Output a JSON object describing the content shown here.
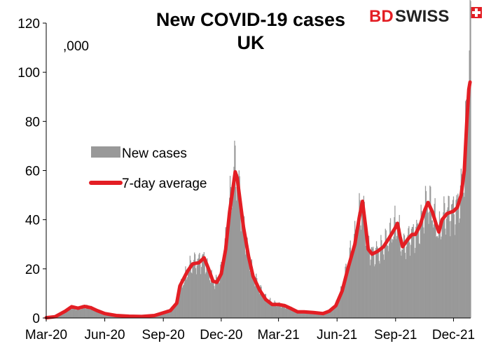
{
  "logo": {
    "text_bd": "BD",
    "text_swiss": "SWISS"
  },
  "chart_data": {
    "type": "bar",
    "title_line1": "New COVID-19 cases",
    "title_line2": "UK",
    "unit_label": ",000",
    "xlabel": "",
    "ylabel": "",
    "ylim": [
      0,
      120
    ],
    "y_ticks": [
      0,
      20,
      40,
      60,
      80,
      100,
      120
    ],
    "x_ticks": [
      "Mar-20",
      "Jun-20",
      "Sep-20",
      "Dec-20",
      "Mar-21",
      "Jun-21",
      "Sep-21",
      "Dec-21"
    ],
    "x_tick_days": [
      0,
      92,
      184,
      275,
      365,
      457,
      549,
      640
    ],
    "x_range_days": [
      0,
      667
    ],
    "grid": false,
    "legend_position": "left-middle",
    "colors": {
      "bars": "#999999",
      "average": "#e31e24",
      "axis": "#000000",
      "logo_red": "#e31e24"
    },
    "series": [
      {
        "name": "New cases",
        "kind": "bar",
        "points": [
          [
            0,
            0.1
          ],
          [
            14,
            0.5
          ],
          [
            30,
            2.8
          ],
          [
            40,
            4.6
          ],
          [
            50,
            4.0
          ],
          [
            60,
            4.7
          ],
          [
            70,
            4.2
          ],
          [
            80,
            3.0
          ],
          [
            92,
            1.8
          ],
          [
            110,
            1.0
          ],
          [
            130,
            0.7
          ],
          [
            150,
            0.6
          ],
          [
            170,
            1.0
          ],
          [
            180,
            2.2
          ],
          [
            195,
            3.2
          ],
          [
            205,
            6.0
          ],
          [
            210,
            12.0
          ],
          [
            216,
            15.0
          ],
          [
            222,
            19.0
          ],
          [
            230,
            22.5
          ],
          [
            240,
            23.0
          ],
          [
            248,
            24.0
          ],
          [
            255,
            20.0
          ],
          [
            262,
            15.0
          ],
          [
            268,
            14.5
          ],
          [
            275,
            19.0
          ],
          [
            282,
            30.0
          ],
          [
            288,
            45.0
          ],
          [
            293,
            55.0
          ],
          [
            297,
            62.0
          ],
          [
            300,
            59.0
          ],
          [
            305,
            48.0
          ],
          [
            310,
            38.0
          ],
          [
            318,
            26.0
          ],
          [
            325,
            18.0
          ],
          [
            335,
            12.0
          ],
          [
            345,
            8.0
          ],
          [
            355,
            6.0
          ],
          [
            365,
            5.5
          ],
          [
            375,
            5.0
          ],
          [
            385,
            4.0
          ],
          [
            395,
            2.5
          ],
          [
            405,
            2.6
          ],
          [
            420,
            2.3
          ],
          [
            435,
            2.0
          ],
          [
            445,
            3.0
          ],
          [
            455,
            5.5
          ],
          [
            465,
            12.0
          ],
          [
            475,
            23.0
          ],
          [
            485,
            32.0
          ],
          [
            492,
            42.0
          ],
          [
            497,
            46.0
          ],
          [
            502,
            38.0
          ],
          [
            506,
            30.0
          ],
          [
            512,
            26.0
          ],
          [
            520,
            27.0
          ],
          [
            530,
            29.0
          ],
          [
            540,
            33.0
          ],
          [
            548,
            37.0
          ],
          [
            552,
            38.0
          ],
          [
            556,
            33.0
          ],
          [
            560,
            28.0
          ],
          [
            568,
            32.0
          ],
          [
            575,
            34.0
          ],
          [
            580,
            34.0
          ],
          [
            588,
            38.0
          ],
          [
            595,
            44.0
          ],
          [
            600,
            47.0
          ],
          [
            607,
            43.0
          ],
          [
            613,
            38.0
          ],
          [
            617,
            34.0
          ],
          [
            622,
            40.0
          ],
          [
            630,
            43.0
          ],
          [
            640,
            43.5
          ],
          [
            646,
            45.0
          ],
          [
            652,
            52.0
          ],
          [
            657,
            62.0
          ],
          [
            661,
            85.0
          ],
          [
            664,
            108.0
          ],
          [
            666,
            118.0
          ],
          [
            667,
            110.0
          ]
        ]
      },
      {
        "name": "7-day average",
        "kind": "line",
        "points": [
          [
            0,
            0.1
          ],
          [
            14,
            0.5
          ],
          [
            30,
            2.8
          ],
          [
            40,
            4.6
          ],
          [
            50,
            4.0
          ],
          [
            60,
            4.7
          ],
          [
            70,
            4.2
          ],
          [
            80,
            3.0
          ],
          [
            92,
            1.8
          ],
          [
            110,
            1.0
          ],
          [
            130,
            0.7
          ],
          [
            150,
            0.6
          ],
          [
            170,
            1.0
          ],
          [
            180,
            1.8
          ],
          [
            195,
            3.0
          ],
          [
            205,
            6.0
          ],
          [
            210,
            13.0
          ],
          [
            216,
            16.0
          ],
          [
            222,
            19.0
          ],
          [
            230,
            22.0
          ],
          [
            240,
            22.5
          ],
          [
            248,
            24.5
          ],
          [
            255,
            20.0
          ],
          [
            262,
            15.0
          ],
          [
            268,
            14.5
          ],
          [
            275,
            18.0
          ],
          [
            282,
            28.0
          ],
          [
            288,
            43.0
          ],
          [
            293,
            52.0
          ],
          [
            297,
            59.5
          ],
          [
            300,
            57.0
          ],
          [
            305,
            47.0
          ],
          [
            310,
            37.0
          ],
          [
            318,
            25.0
          ],
          [
            325,
            17.0
          ],
          [
            335,
            11.5
          ],
          [
            345,
            7.5
          ],
          [
            355,
            5.5
          ],
          [
            365,
            5.5
          ],
          [
            375,
            5.0
          ],
          [
            385,
            3.8
          ],
          [
            395,
            2.5
          ],
          [
            405,
            2.5
          ],
          [
            420,
            2.2
          ],
          [
            435,
            1.8
          ],
          [
            445,
            2.8
          ],
          [
            455,
            5.0
          ],
          [
            465,
            11.0
          ],
          [
            475,
            21.0
          ],
          [
            485,
            30.0
          ],
          [
            492,
            41.0
          ],
          [
            497,
            47.5
          ],
          [
            502,
            37.0
          ],
          [
            506,
            28.0
          ],
          [
            512,
            26.0
          ],
          [
            520,
            27.0
          ],
          [
            530,
            29.0
          ],
          [
            540,
            33.0
          ],
          [
            548,
            36.5
          ],
          [
            552,
            38.5
          ],
          [
            556,
            33.0
          ],
          [
            560,
            29.0
          ],
          [
            568,
            32.0
          ],
          [
            575,
            34.0
          ],
          [
            580,
            34.0
          ],
          [
            588,
            38.0
          ],
          [
            595,
            44.0
          ],
          [
            600,
            47.0
          ],
          [
            607,
            43.0
          ],
          [
            613,
            38.0
          ],
          [
            617,
            35.0
          ],
          [
            622,
            40.0
          ],
          [
            630,
            42.5
          ],
          [
            640,
            43.5
          ],
          [
            646,
            45.0
          ],
          [
            652,
            50.0
          ],
          [
            657,
            60.0
          ],
          [
            661,
            80.0
          ],
          [
            664,
            93.0
          ],
          [
            666,
            96.0
          ]
        ]
      }
    ]
  }
}
